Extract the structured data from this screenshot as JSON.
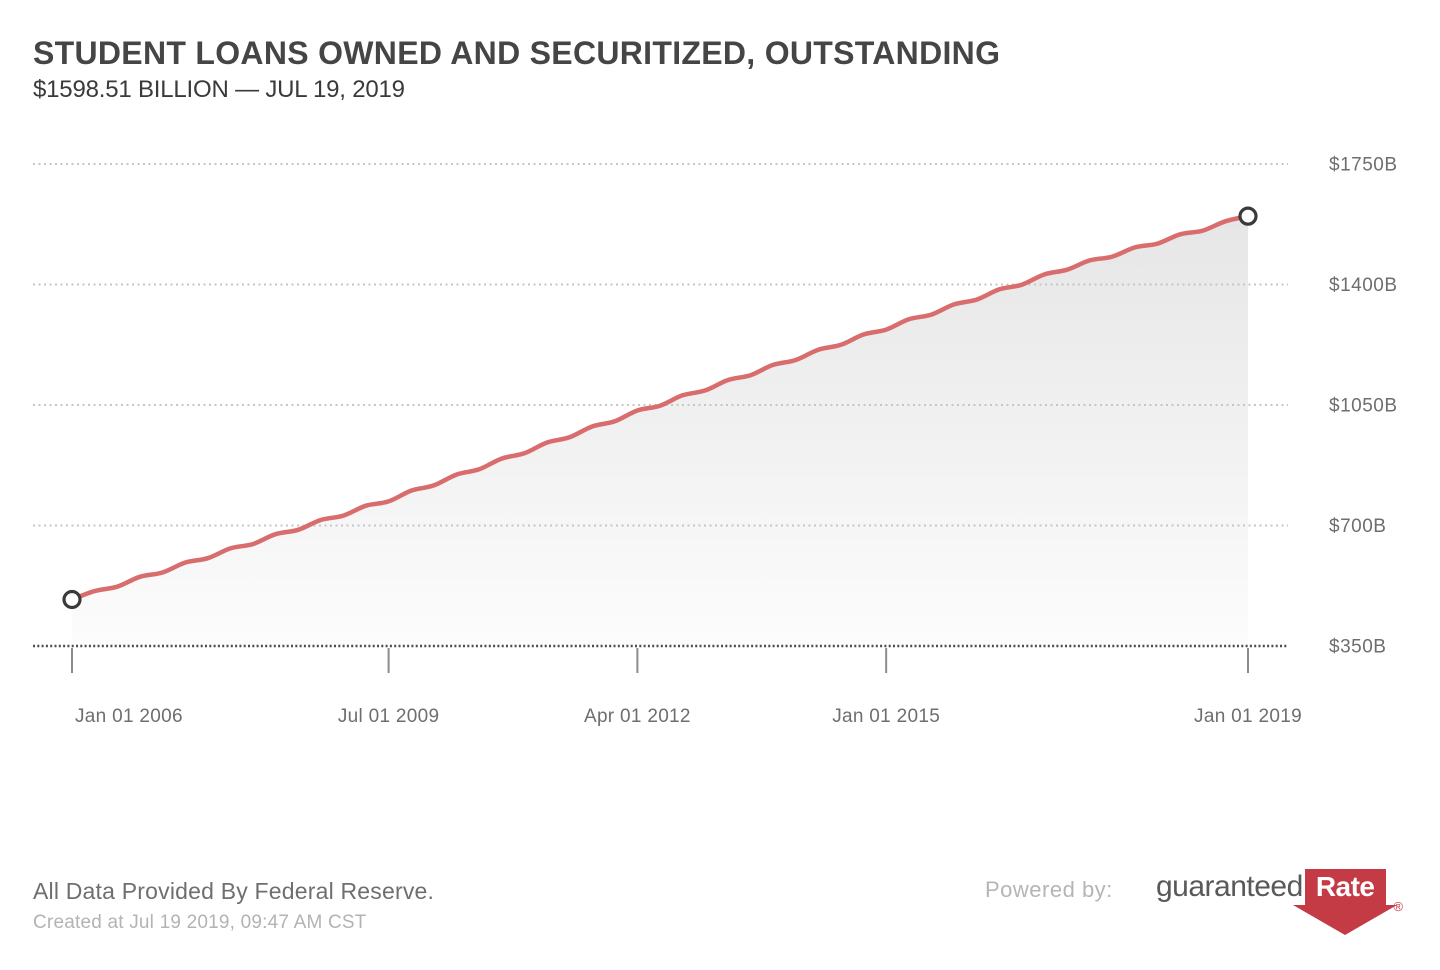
{
  "header": {
    "title": "STUDENT LOANS OWNED AND SECURITIZED, OUTSTANDING",
    "subtitle": "$1598.51 BILLION — JUL 19, 2019"
  },
  "chart_data": {
    "type": "area",
    "title": "Student Loans Owned and Securitized, Outstanding",
    "unit": "USD billions",
    "latest_value_billion": 1598.51,
    "latest_value_date": "Jul 19, 2019",
    "x": [
      "2006-01",
      "2006-04",
      "2006-07",
      "2006-10",
      "2007-01",
      "2007-04",
      "2007-07",
      "2007-10",
      "2008-01",
      "2008-04",
      "2008-07",
      "2008-10",
      "2009-01",
      "2009-04",
      "2009-07",
      "2009-10",
      "2010-01",
      "2010-04",
      "2010-07",
      "2010-10",
      "2011-01",
      "2011-04",
      "2011-07",
      "2011-10",
      "2012-01",
      "2012-04",
      "2012-07",
      "2012-10",
      "2013-01",
      "2013-04",
      "2013-07",
      "2013-10",
      "2014-01",
      "2014-04",
      "2014-07",
      "2014-10",
      "2015-01",
      "2015-04",
      "2015-07",
      "2015-10",
      "2016-01",
      "2016-04",
      "2016-07",
      "2016-10",
      "2017-01",
      "2017-04",
      "2017-07",
      "2017-10",
      "2018-01",
      "2018-04",
      "2018-07",
      "2018-10",
      "2019-01"
    ],
    "values": [
      485.0,
      509.6,
      522.3,
      550.9,
      563.6,
      592.2,
      604.9,
      633.5,
      646.1,
      674.8,
      687.4,
      716.1,
      728.7,
      757.4,
      770.0,
      801.3,
      816.5,
      847.8,
      863.1,
      894.4,
      909.6,
      940.9,
      956.2,
      987.5,
      1002.7,
      1034.0,
      1048.1,
      1078.2,
      1092.3,
      1122.4,
      1136.5,
      1166.5,
      1180.6,
      1210.7,
      1224.8,
      1254.9,
      1269.0,
      1298.8,
      1312.5,
      1342.3,
      1356.0,
      1385.8,
      1399.5,
      1429.3,
      1443.0,
      1469.9,
      1480.9,
      1507.8,
      1518.8,
      1545.7,
      1556.6,
      1583.6,
      1598.51
    ],
    "x_tick_indices": [
      0,
      14,
      25,
      36,
      52
    ],
    "x_tick_labels": [
      "Jan 01 2006",
      "Jul 01 2009",
      "Apr 01 2012",
      "Jan 01 2015",
      "Jan 01 2019"
    ],
    "y_ticks": [
      350,
      700,
      1050,
      1400,
      1750
    ],
    "y_tick_labels": [
      "$350B",
      "$700B",
      "$1050B",
      "$1400B",
      "$1750B"
    ],
    "ylim": [
      350,
      1750
    ],
    "grid": "dotted horizontal gridlines, dotted x-axis baseline",
    "legend": "none",
    "markers": "open circles on first and last data point",
    "line_color": "#d96c6c",
    "marker_stroke_color": "#3a3a3a",
    "area_fill_top": "#e6e6e6",
    "area_fill_bottom": "#fcfcfc",
    "gridline_color": "#c6c6c6",
    "axis_color": "#4d4d4d",
    "tick_label_color": "#6e6e6e"
  },
  "footer": {
    "source_note": "All Data Provided By Federal Reserve.",
    "created_at": "Created at Jul 19 2019, 09:47 AM CST",
    "powered_by": "Powered by:",
    "logo_guaranteed": "guaranteed",
    "logo_rate": "Rate",
    "logo_reg": "®"
  }
}
